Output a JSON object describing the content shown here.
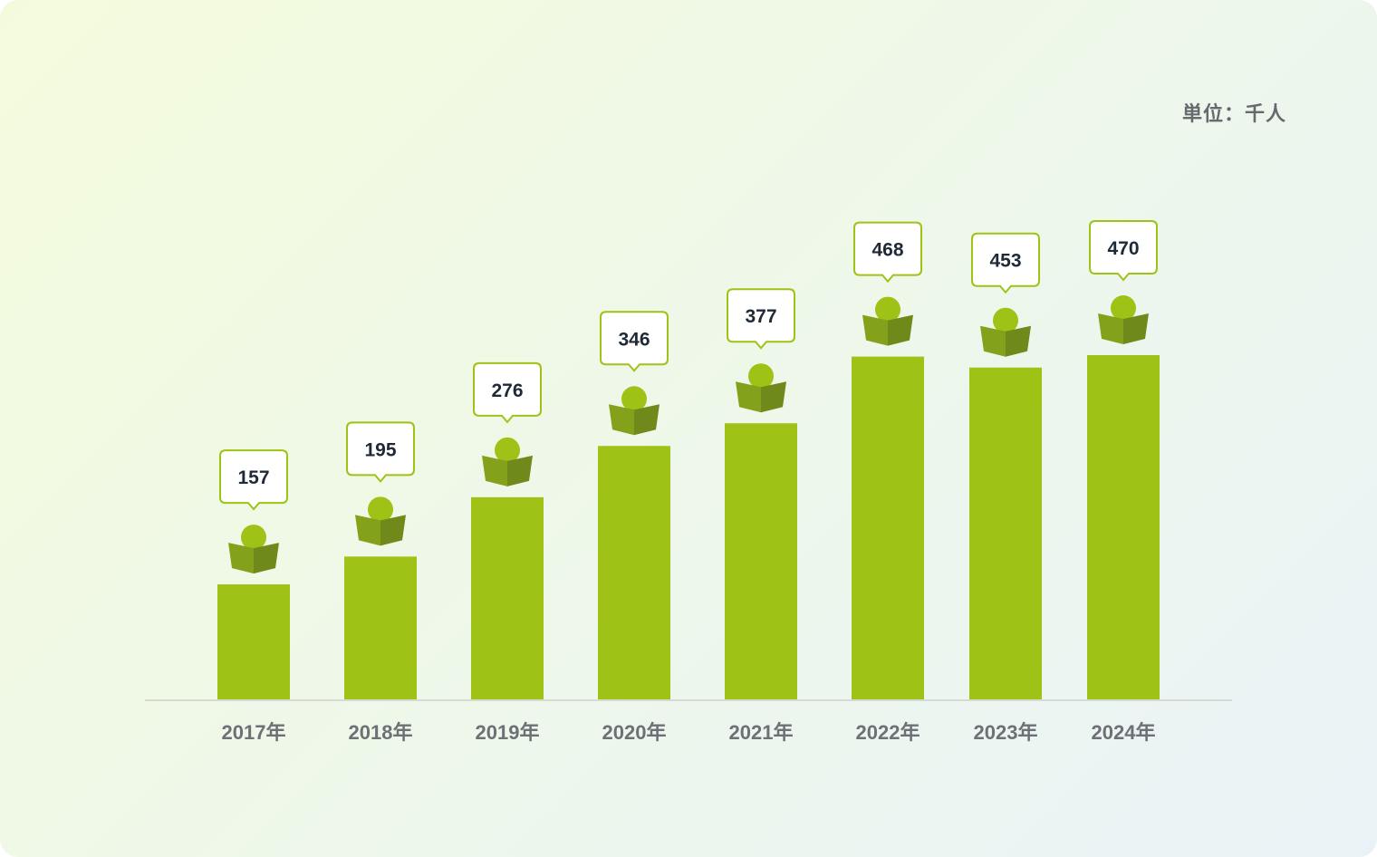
{
  "unit_label": "単位：千人",
  "colors": {
    "bar": "#9fc216",
    "icon_head": "#9fc216",
    "book_left": "#84a11c",
    "book_right": "#6f8a1a",
    "bubble_border": "#9fc216",
    "axis": "#d6dad2"
  },
  "icons": {
    "bar_top": "reader-book-icon"
  },
  "chart_data": {
    "type": "bar",
    "categories": [
      "2017年",
      "2018年",
      "2019年",
      "2020年",
      "2021年",
      "2022年",
      "2023年",
      "2024年"
    ],
    "values": [
      157,
      195,
      276,
      346,
      377,
      468,
      453,
      470
    ],
    "ylim": [
      0,
      470
    ],
    "grid": false,
    "legend": "none",
    "data_labels": [
      "157",
      "195",
      "276",
      "346",
      "377",
      "468",
      "453",
      "470"
    ]
  }
}
